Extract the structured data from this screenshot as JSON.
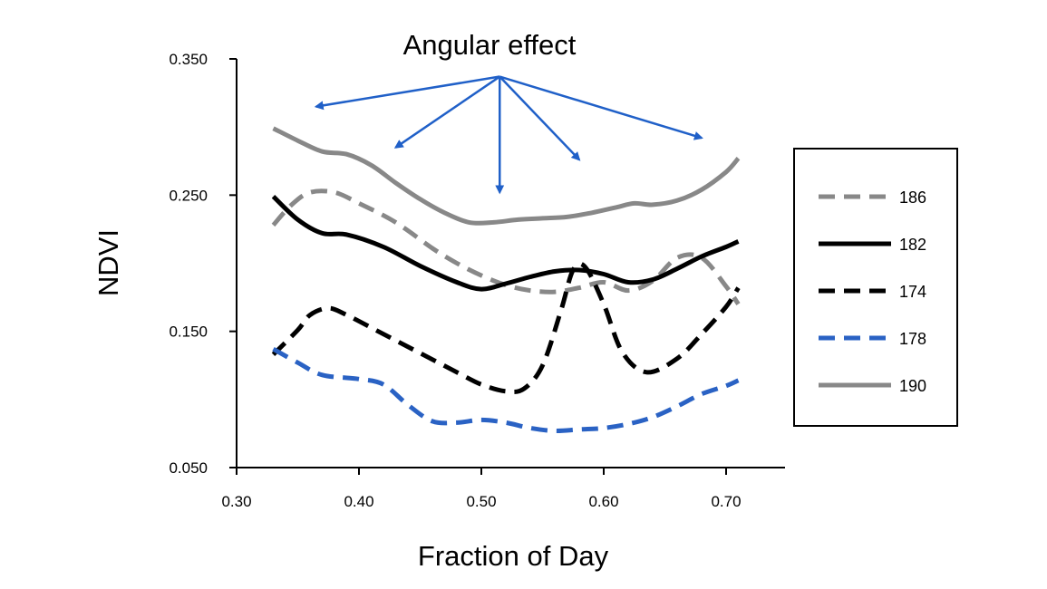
{
  "chart_data": {
    "type": "line",
    "xlabel": "Fraction of Day",
    "ylabel": "NDVI",
    "xlim": [
      0.3,
      0.725
    ],
    "ylim": [
      0.05,
      0.35
    ],
    "x_ticks": [
      "0.30",
      "0.40",
      "0.50",
      "0.60",
      "0.70"
    ],
    "y_ticks": [
      "0.050",
      "0.150",
      "0.250",
      "0.350"
    ],
    "grid": false,
    "legend_position": "right",
    "annotation": {
      "text": "Angular effect",
      "color": "#2060c8",
      "origin": [
        0.515,
        0.337
      ],
      "targets": [
        [
          0.365,
          0.315
        ],
        [
          0.43,
          0.285
        ],
        [
          0.515,
          0.252
        ],
        [
          0.58,
          0.276
        ],
        [
          0.68,
          0.292
        ]
      ]
    },
    "series": [
      {
        "name": "186",
        "color": "#888888",
        "dash": "dashed",
        "points": [
          [
            0.33,
            0.228
          ],
          [
            0.345,
            0.243
          ],
          [
            0.36,
            0.252
          ],
          [
            0.38,
            0.252
          ],
          [
            0.4,
            0.244
          ],
          [
            0.43,
            0.23
          ],
          [
            0.46,
            0.211
          ],
          [
            0.48,
            0.2
          ],
          [
            0.5,
            0.191
          ],
          [
            0.52,
            0.184
          ],
          [
            0.54,
            0.18
          ],
          [
            0.56,
            0.179
          ],
          [
            0.58,
            0.182
          ],
          [
            0.6,
            0.186
          ],
          [
            0.62,
            0.18
          ],
          [
            0.64,
            0.187
          ],
          [
            0.66,
            0.204
          ],
          [
            0.68,
            0.204
          ],
          [
            0.7,
            0.183
          ],
          [
            0.71,
            0.17
          ]
        ]
      },
      {
        "name": "182",
        "color": "#000000",
        "dash": "solid",
        "points": [
          [
            0.33,
            0.249
          ],
          [
            0.35,
            0.232
          ],
          [
            0.37,
            0.222
          ],
          [
            0.39,
            0.221
          ],
          [
            0.42,
            0.212
          ],
          [
            0.45,
            0.198
          ],
          [
            0.48,
            0.186
          ],
          [
            0.5,
            0.181
          ],
          [
            0.52,
            0.185
          ],
          [
            0.54,
            0.19
          ],
          [
            0.56,
            0.194
          ],
          [
            0.58,
            0.195
          ],
          [
            0.6,
            0.192
          ],
          [
            0.62,
            0.186
          ],
          [
            0.64,
            0.188
          ],
          [
            0.66,
            0.196
          ],
          [
            0.68,
            0.205
          ],
          [
            0.7,
            0.212
          ],
          [
            0.71,
            0.216
          ]
        ]
      },
      {
        "name": "174",
        "color": "#000000",
        "dash": "dashed",
        "points": [
          [
            0.33,
            0.133
          ],
          [
            0.35,
            0.151
          ],
          [
            0.36,
            0.162
          ],
          [
            0.375,
            0.167
          ],
          [
            0.39,
            0.162
          ],
          [
            0.42,
            0.148
          ],
          [
            0.45,
            0.134
          ],
          [
            0.48,
            0.12
          ],
          [
            0.5,
            0.111
          ],
          [
            0.52,
            0.106
          ],
          [
            0.535,
            0.108
          ],
          [
            0.55,
            0.125
          ],
          [
            0.565,
            0.165
          ],
          [
            0.575,
            0.195
          ],
          [
            0.585,
            0.197
          ],
          [
            0.6,
            0.17
          ],
          [
            0.615,
            0.135
          ],
          [
            0.635,
            0.12
          ],
          [
            0.66,
            0.13
          ],
          [
            0.68,
            0.148
          ],
          [
            0.7,
            0.168
          ],
          [
            0.71,
            0.182
          ]
        ]
      },
      {
        "name": "178",
        "color": "#2a62c4",
        "dash": "dashed",
        "points": [
          [
            0.33,
            0.137
          ],
          [
            0.35,
            0.127
          ],
          [
            0.37,
            0.118
          ],
          [
            0.4,
            0.115
          ],
          [
            0.42,
            0.111
          ],
          [
            0.44,
            0.096
          ],
          [
            0.46,
            0.084
          ],
          [
            0.48,
            0.083
          ],
          [
            0.5,
            0.085
          ],
          [
            0.52,
            0.083
          ],
          [
            0.54,
            0.079
          ],
          [
            0.56,
            0.077
          ],
          [
            0.58,
            0.078
          ],
          [
            0.6,
            0.079
          ],
          [
            0.62,
            0.082
          ],
          [
            0.64,
            0.087
          ],
          [
            0.66,
            0.095
          ],
          [
            0.68,
            0.104
          ],
          [
            0.7,
            0.11
          ],
          [
            0.71,
            0.114
          ]
        ]
      },
      {
        "name": "190",
        "color": "#888888",
        "dash": "solid",
        "points": [
          [
            0.33,
            0.299
          ],
          [
            0.35,
            0.29
          ],
          [
            0.37,
            0.282
          ],
          [
            0.39,
            0.28
          ],
          [
            0.41,
            0.272
          ],
          [
            0.43,
            0.259
          ],
          [
            0.45,
            0.247
          ],
          [
            0.47,
            0.237
          ],
          [
            0.49,
            0.23
          ],
          [
            0.51,
            0.23
          ],
          [
            0.53,
            0.232
          ],
          [
            0.55,
            0.233
          ],
          [
            0.57,
            0.234
          ],
          [
            0.59,
            0.237
          ],
          [
            0.61,
            0.241
          ],
          [
            0.625,
            0.244
          ],
          [
            0.64,
            0.243
          ],
          [
            0.66,
            0.246
          ],
          [
            0.68,
            0.254
          ],
          [
            0.7,
            0.267
          ],
          [
            0.71,
            0.277
          ]
        ]
      }
    ]
  }
}
